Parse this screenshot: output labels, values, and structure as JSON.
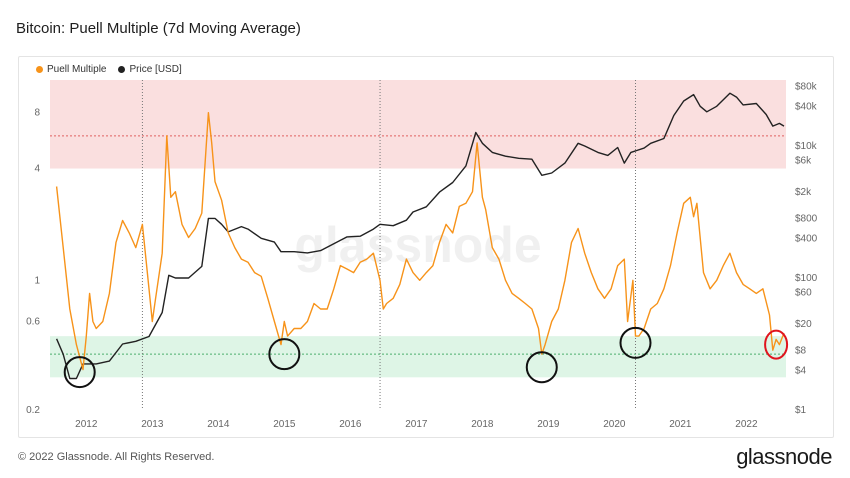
{
  "title": "Bitcoin: Puell Multiple (7d Moving Average)",
  "footer": "© 2022 Glassnode. All Rights Reserved.",
  "brand": "glassnode",
  "watermark": "glassnode",
  "chart_data": {
    "type": "line",
    "legend": [
      {
        "name": "Puell Multiple",
        "color": "#f7931a"
      },
      {
        "name": "Price [USD]",
        "color": "#222222"
      }
    ],
    "x_ticks": [
      "2012",
      "2013",
      "2014",
      "2015",
      "2016",
      "2017",
      "2018",
      "2019",
      "2020",
      "2021",
      "2022"
    ],
    "y_left_ticks": [
      "8",
      "4",
      "1",
      "0.6",
      "0.2"
    ],
    "y_right_ticks": [
      "$80k",
      "$40k",
      "$10k",
      "$6k",
      "$2k",
      "$800",
      "$400",
      "$100",
      "$60",
      "$20",
      "$8",
      "$4",
      "$1"
    ],
    "left_axis": {
      "scale": "log",
      "range": [
        0.2,
        12
      ]
    },
    "right_axis": {
      "scale": "log",
      "range": [
        1,
        100000
      ]
    },
    "halvings": [
      2012.9,
      2016.5,
      2020.37
    ],
    "red_band": [
      4,
      12
    ],
    "green_band": [
      0.3,
      0.5
    ],
    "series": [
      {
        "name": "Puell Multiple",
        "color": "#f7931a",
        "points": [
          [
            2011.6,
            3.2
          ],
          [
            2011.7,
            1.5
          ],
          [
            2011.8,
            0.7
          ],
          [
            2011.9,
            0.45
          ],
          [
            2012.0,
            0.33
          ],
          [
            2012.05,
            0.5
          ],
          [
            2012.1,
            0.85
          ],
          [
            2012.15,
            0.6
          ],
          [
            2012.2,
            0.55
          ],
          [
            2012.3,
            0.6
          ],
          [
            2012.4,
            0.85
          ],
          [
            2012.5,
            1.6
          ],
          [
            2012.6,
            2.1
          ],
          [
            2012.7,
            1.8
          ],
          [
            2012.8,
            1.5
          ],
          [
            2012.9,
            2.0
          ],
          [
            2013.0,
            0.9
          ],
          [
            2013.05,
            0.6
          ],
          [
            2013.1,
            0.8
          ],
          [
            2013.2,
            1.4
          ],
          [
            2013.27,
            6.0
          ],
          [
            2013.33,
            2.8
          ],
          [
            2013.4,
            3.0
          ],
          [
            2013.5,
            2.0
          ],
          [
            2013.6,
            1.7
          ],
          [
            2013.7,
            1.9
          ],
          [
            2013.8,
            2.3
          ],
          [
            2013.9,
            8.0
          ],
          [
            2013.95,
            5.5
          ],
          [
            2014.0,
            3.4
          ],
          [
            2014.1,
            2.7
          ],
          [
            2014.2,
            1.8
          ],
          [
            2014.3,
            1.5
          ],
          [
            2014.4,
            1.3
          ],
          [
            2014.5,
            1.25
          ],
          [
            2014.6,
            1.1
          ],
          [
            2014.7,
            1.05
          ],
          [
            2014.8,
            0.8
          ],
          [
            2014.9,
            0.6
          ],
          [
            2015.0,
            0.45
          ],
          [
            2015.05,
            0.6
          ],
          [
            2015.1,
            0.5
          ],
          [
            2015.2,
            0.55
          ],
          [
            2015.3,
            0.55
          ],
          [
            2015.4,
            0.6
          ],
          [
            2015.5,
            0.75
          ],
          [
            2015.6,
            0.7
          ],
          [
            2015.7,
            0.7
          ],
          [
            2015.8,
            0.9
          ],
          [
            2015.9,
            1.2
          ],
          [
            2016.0,
            1.15
          ],
          [
            2016.1,
            1.1
          ],
          [
            2016.2,
            1.25
          ],
          [
            2016.3,
            1.3
          ],
          [
            2016.4,
            1.4
          ],
          [
            2016.5,
            1.0
          ],
          [
            2016.55,
            0.7
          ],
          [
            2016.6,
            0.75
          ],
          [
            2016.7,
            0.8
          ],
          [
            2016.8,
            0.95
          ],
          [
            2016.9,
            1.3
          ],
          [
            2017.0,
            1.1
          ],
          [
            2017.1,
            1.0
          ],
          [
            2017.2,
            1.1
          ],
          [
            2017.3,
            1.2
          ],
          [
            2017.4,
            1.6
          ],
          [
            2017.5,
            2.0
          ],
          [
            2017.6,
            1.8
          ],
          [
            2017.7,
            2.5
          ],
          [
            2017.8,
            2.6
          ],
          [
            2017.9,
            3.0
          ],
          [
            2017.97,
            5.5
          ],
          [
            2018.05,
            2.8
          ],
          [
            2018.1,
            2.4
          ],
          [
            2018.2,
            1.5
          ],
          [
            2018.3,
            1.3
          ],
          [
            2018.4,
            1.0
          ],
          [
            2018.5,
            0.85
          ],
          [
            2018.6,
            0.8
          ],
          [
            2018.7,
            0.75
          ],
          [
            2018.8,
            0.7
          ],
          [
            2018.9,
            0.55
          ],
          [
            2018.95,
            0.4
          ],
          [
            2019.0,
            0.45
          ],
          [
            2019.1,
            0.6
          ],
          [
            2019.2,
            0.7
          ],
          [
            2019.3,
            1.0
          ],
          [
            2019.4,
            1.6
          ],
          [
            2019.5,
            1.9
          ],
          [
            2019.6,
            1.4
          ],
          [
            2019.7,
            1.1
          ],
          [
            2019.8,
            0.9
          ],
          [
            2019.9,
            0.8
          ],
          [
            2020.0,
            0.9
          ],
          [
            2020.1,
            1.2
          ],
          [
            2020.2,
            1.3
          ],
          [
            2020.25,
            0.6
          ],
          [
            2020.33,
            1.0
          ],
          [
            2020.37,
            0.5
          ],
          [
            2020.42,
            0.5
          ],
          [
            2020.5,
            0.55
          ],
          [
            2020.6,
            0.7
          ],
          [
            2020.7,
            0.75
          ],
          [
            2020.8,
            0.9
          ],
          [
            2020.9,
            1.2
          ],
          [
            2021.0,
            1.8
          ],
          [
            2021.1,
            2.6
          ],
          [
            2021.2,
            2.8
          ],
          [
            2021.25,
            2.2
          ],
          [
            2021.3,
            2.6
          ],
          [
            2021.4,
            1.1
          ],
          [
            2021.5,
            0.9
          ],
          [
            2021.6,
            1.0
          ],
          [
            2021.7,
            1.2
          ],
          [
            2021.8,
            1.4
          ],
          [
            2021.9,
            1.1
          ],
          [
            2022.0,
            0.95
          ],
          [
            2022.1,
            0.9
          ],
          [
            2022.2,
            0.85
          ],
          [
            2022.3,
            0.9
          ],
          [
            2022.4,
            0.65
          ],
          [
            2022.45,
            0.42
          ],
          [
            2022.5,
            0.48
          ],
          [
            2022.55,
            0.45
          ],
          [
            2022.62,
            0.52
          ]
        ]
      },
      {
        "name": "Price [USD]",
        "color": "#222222",
        "points": [
          [
            2011.6,
            12
          ],
          [
            2011.7,
            7
          ],
          [
            2011.8,
            3
          ],
          [
            2011.9,
            3
          ],
          [
            2012.0,
            5
          ],
          [
            2012.2,
            5
          ],
          [
            2012.4,
            5.5
          ],
          [
            2012.6,
            10
          ],
          [
            2012.8,
            11
          ],
          [
            2013.0,
            13
          ],
          [
            2013.2,
            30
          ],
          [
            2013.3,
            110
          ],
          [
            2013.4,
            100
          ],
          [
            2013.6,
            100
          ],
          [
            2013.8,
            150
          ],
          [
            2013.9,
            800
          ],
          [
            2014.0,
            800
          ],
          [
            2014.1,
            650
          ],
          [
            2014.2,
            500
          ],
          [
            2014.4,
            600
          ],
          [
            2014.5,
            550
          ],
          [
            2014.7,
            400
          ],
          [
            2014.9,
            350
          ],
          [
            2015.0,
            250
          ],
          [
            2015.2,
            250
          ],
          [
            2015.4,
            240
          ],
          [
            2015.6,
            260
          ],
          [
            2015.8,
            330
          ],
          [
            2016.0,
            420
          ],
          [
            2016.2,
            430
          ],
          [
            2016.4,
            550
          ],
          [
            2016.5,
            650
          ],
          [
            2016.7,
            620
          ],
          [
            2016.9,
            750
          ],
          [
            2017.0,
            1000
          ],
          [
            2017.2,
            1200
          ],
          [
            2017.4,
            2000
          ],
          [
            2017.6,
            2800
          ],
          [
            2017.8,
            5000
          ],
          [
            2017.95,
            16000
          ],
          [
            2018.05,
            11000
          ],
          [
            2018.2,
            8000
          ],
          [
            2018.4,
            7000
          ],
          [
            2018.6,
            6500
          ],
          [
            2018.8,
            6300
          ],
          [
            2018.95,
            3600
          ],
          [
            2019.1,
            3900
          ],
          [
            2019.3,
            5500
          ],
          [
            2019.5,
            11000
          ],
          [
            2019.6,
            10000
          ],
          [
            2019.8,
            8000
          ],
          [
            2019.95,
            7200
          ],
          [
            2020.1,
            9500
          ],
          [
            2020.2,
            5500
          ],
          [
            2020.3,
            8000
          ],
          [
            2020.5,
            9300
          ],
          [
            2020.6,
            11000
          ],
          [
            2020.8,
            13000
          ],
          [
            2020.95,
            29000
          ],
          [
            2021.1,
            48000
          ],
          [
            2021.25,
            60000
          ],
          [
            2021.35,
            40000
          ],
          [
            2021.45,
            33000
          ],
          [
            2021.6,
            40000
          ],
          [
            2021.8,
            63000
          ],
          [
            2021.9,
            55000
          ],
          [
            2022.0,
            42000
          ],
          [
            2022.2,
            44000
          ],
          [
            2022.35,
            30000
          ],
          [
            2022.45,
            20000
          ],
          [
            2022.55,
            22000
          ],
          [
            2022.62,
            20000
          ]
        ]
      }
    ],
    "annotations": [
      {
        "type": "circle",
        "color": "#111111",
        "x": 2011.95,
        "y": 0.32
      },
      {
        "type": "circle",
        "color": "#111111",
        "x": 2015.05,
        "y": 0.4
      },
      {
        "type": "circle",
        "color": "#111111",
        "x": 2018.95,
        "y": 0.34
      },
      {
        "type": "circle",
        "color": "#111111",
        "x": 2020.37,
        "y": 0.46
      },
      {
        "type": "circle",
        "color": "#e0141e",
        "x": 2022.5,
        "y": 0.45
      }
    ]
  }
}
